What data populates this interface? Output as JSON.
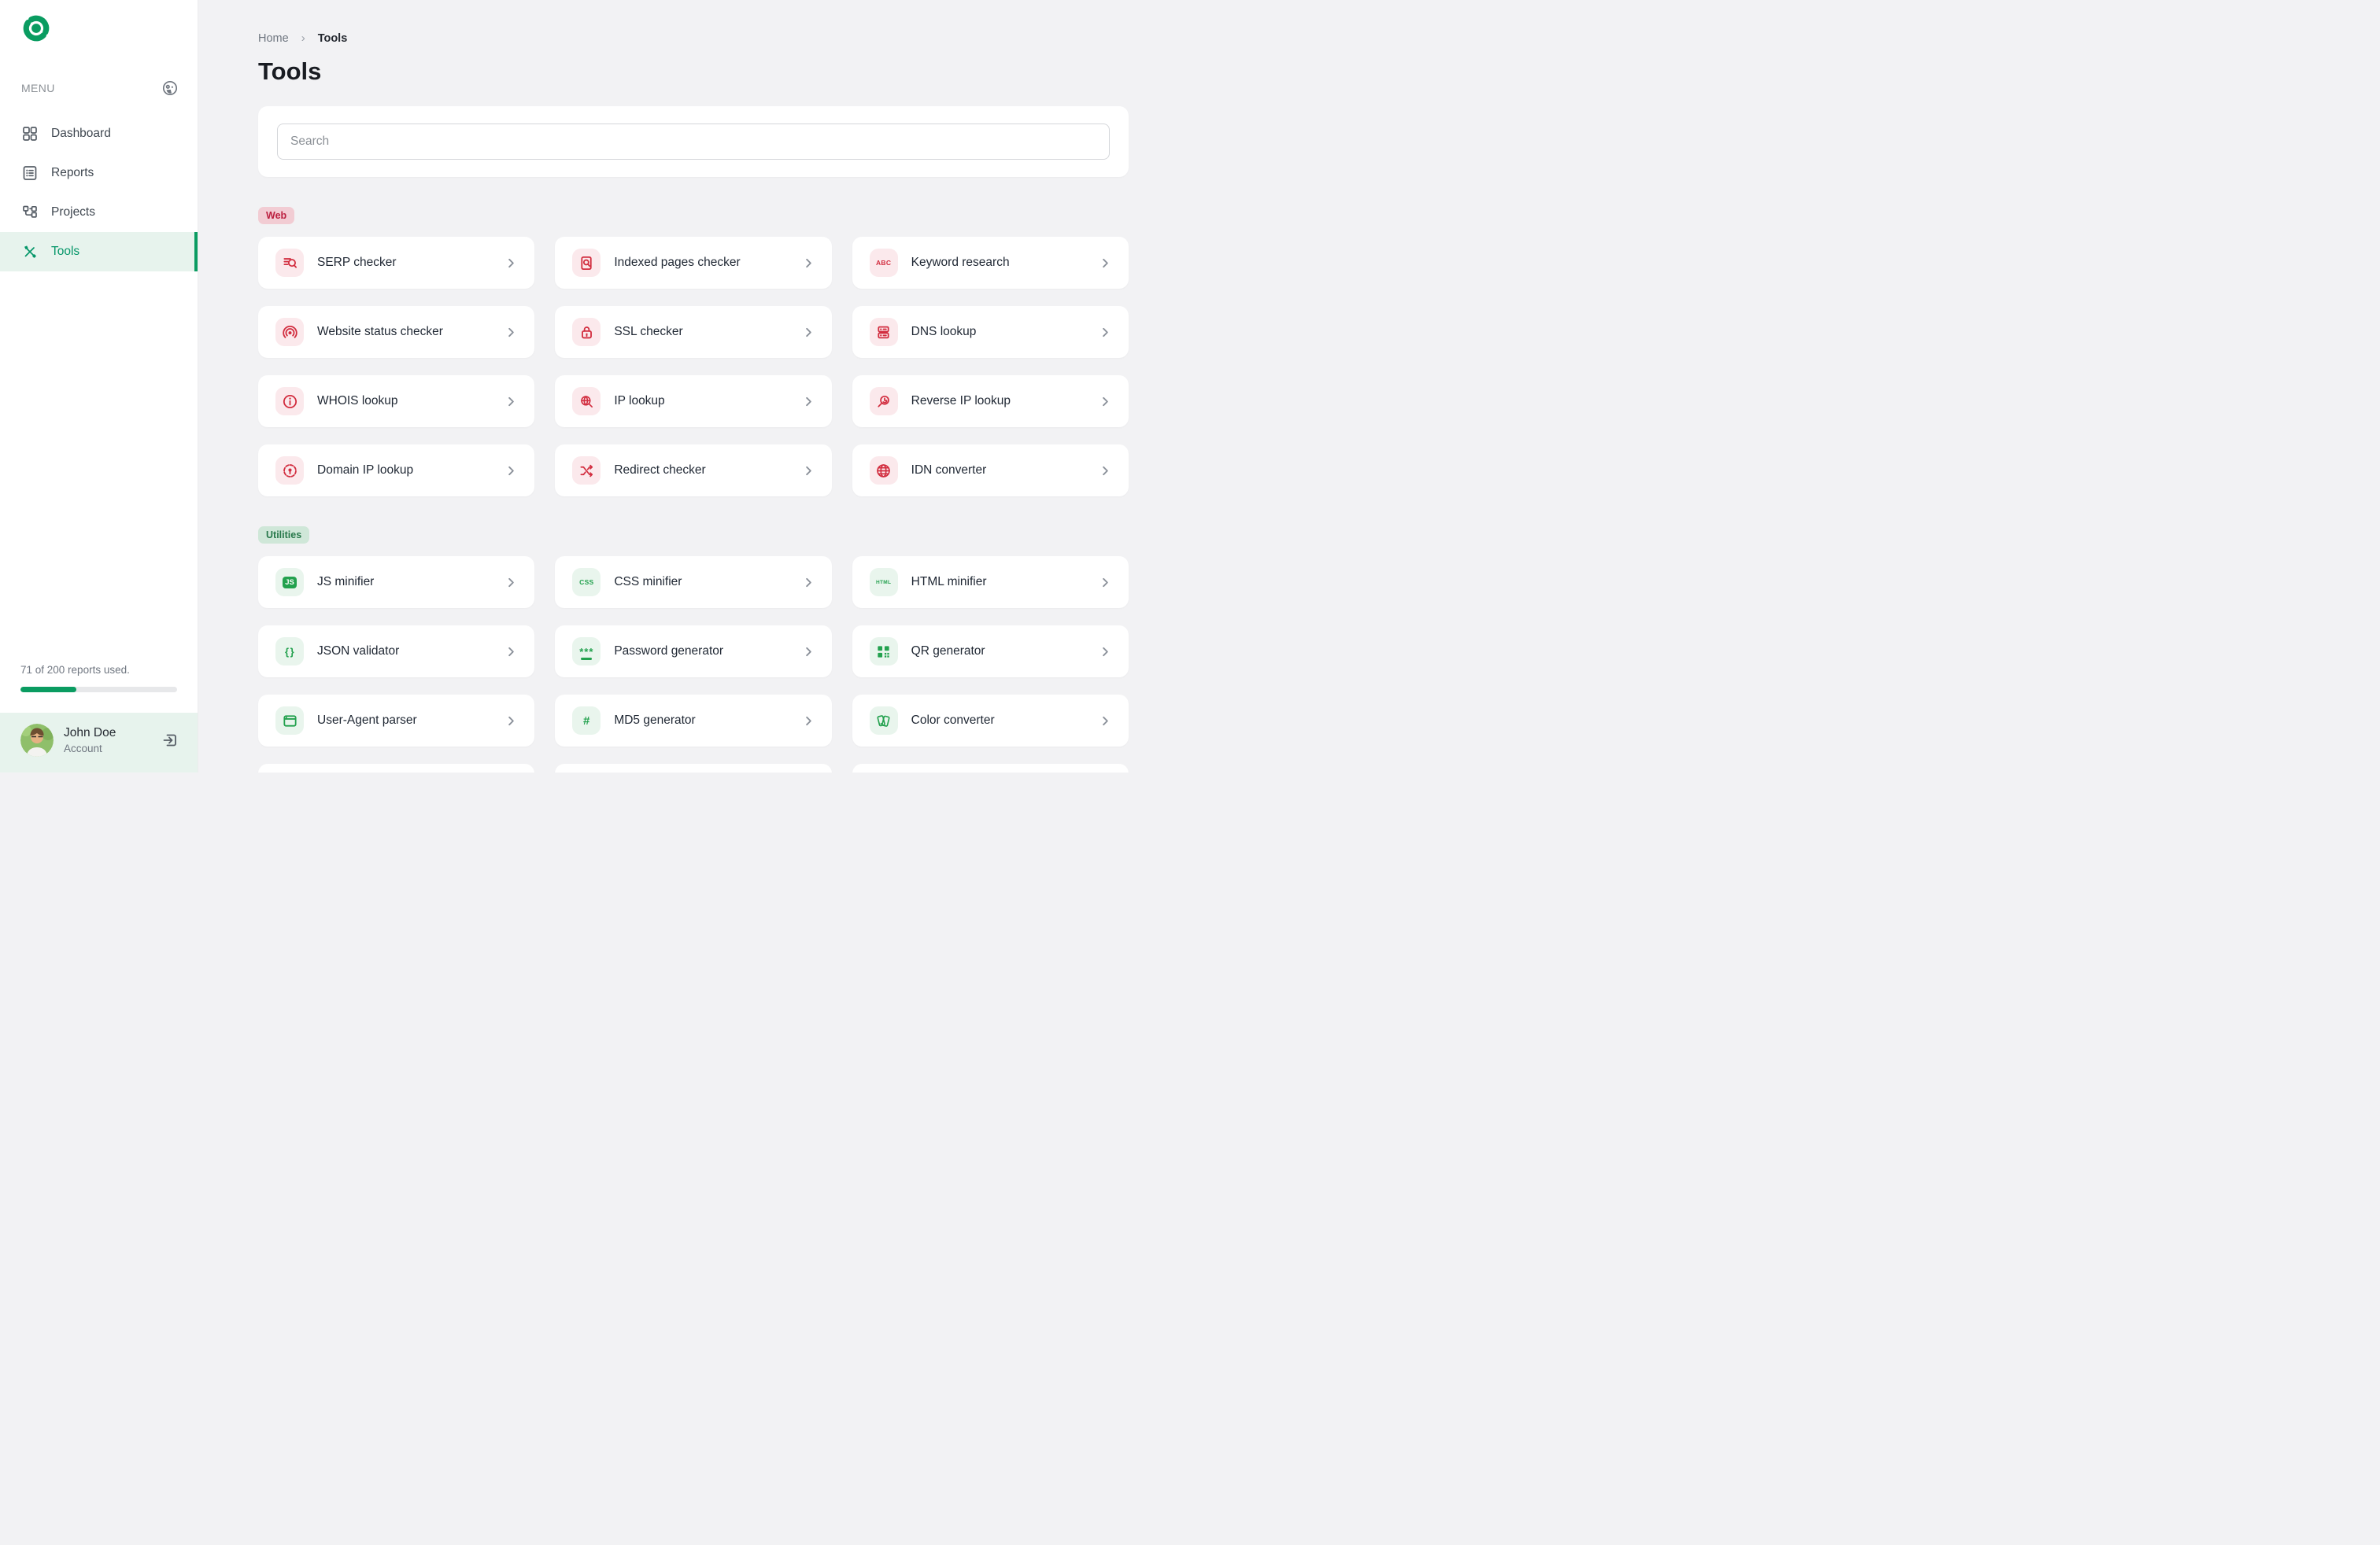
{
  "sidebar": {
    "menu_label": "MENU",
    "items": [
      {
        "label": "Dashboard",
        "icon": "dashboard-grid-icon",
        "active": false
      },
      {
        "label": "Reports",
        "icon": "reports-list-icon",
        "active": false
      },
      {
        "label": "Projects",
        "icon": "projects-flow-icon",
        "active": false
      },
      {
        "label": "Tools",
        "icon": "tools-crossed-icon",
        "active": true
      }
    ],
    "usage": {
      "text": "71 of 200 reports used.",
      "used": 71,
      "total": 200,
      "percent": 35.5
    },
    "user": {
      "name": "John Doe",
      "role": "Account"
    }
  },
  "header": {
    "breadcrumb": {
      "home": "Home",
      "current": "Tools"
    },
    "title": "Tools"
  },
  "search": {
    "placeholder": "Search"
  },
  "sections": [
    {
      "badge": "Web",
      "tone": "red",
      "tools": [
        {
          "label": "SERP checker",
          "icon": "serp-checker-icon"
        },
        {
          "label": "Indexed pages checker",
          "icon": "indexed-pages-icon"
        },
        {
          "label": "Keyword research",
          "icon": "keyword-abc-icon"
        },
        {
          "label": "Website status checker",
          "icon": "website-status-icon"
        },
        {
          "label": "SSL checker",
          "icon": "ssl-lock-icon"
        },
        {
          "label": "DNS lookup",
          "icon": "dns-server-icon"
        },
        {
          "label": "WHOIS lookup",
          "icon": "whois-info-icon"
        },
        {
          "label": "IP lookup",
          "icon": "ip-lookup-icon"
        },
        {
          "label": "Reverse IP lookup",
          "icon": "reverse-ip-icon"
        },
        {
          "label": "Domain IP lookup",
          "icon": "domain-ip-target-icon"
        },
        {
          "label": "Redirect checker",
          "icon": "redirect-arrows-icon"
        },
        {
          "label": "IDN converter",
          "icon": "idn-globe-icon"
        }
      ],
      "partial_cards": 0
    },
    {
      "badge": "Utilities",
      "tone": "green",
      "tools": [
        {
          "label": "JS minifier",
          "icon": "js-badge-icon"
        },
        {
          "label": "CSS minifier",
          "icon": "css-text-icon"
        },
        {
          "label": "HTML minifier",
          "icon": "html-text-icon"
        },
        {
          "label": "JSON validator",
          "icon": "json-braces-icon"
        },
        {
          "label": "Password generator",
          "icon": "password-stars-icon"
        },
        {
          "label": "QR generator",
          "icon": "qr-code-icon"
        },
        {
          "label": "User-Agent parser",
          "icon": "browser-window-icon"
        },
        {
          "label": "MD5 generator",
          "icon": "md5-hash-icon"
        },
        {
          "label": "Color converter",
          "icon": "color-swatches-icon"
        }
      ],
      "partial_cards": 3
    }
  ],
  "colors": {
    "accent_green": "#0a9c61",
    "accent_red": "#d22d3f",
    "web_badge_bg": "#f2ccd3",
    "web_badge_text": "#bc2040",
    "utilities_badge_bg": "#cfe7d8",
    "utilities_badge_text": "#27784a",
    "red_tile_bg": "#fbe9ec",
    "green_tile_bg": "#e9f5ed",
    "active_nav_bg": "#e7f3ed"
  }
}
